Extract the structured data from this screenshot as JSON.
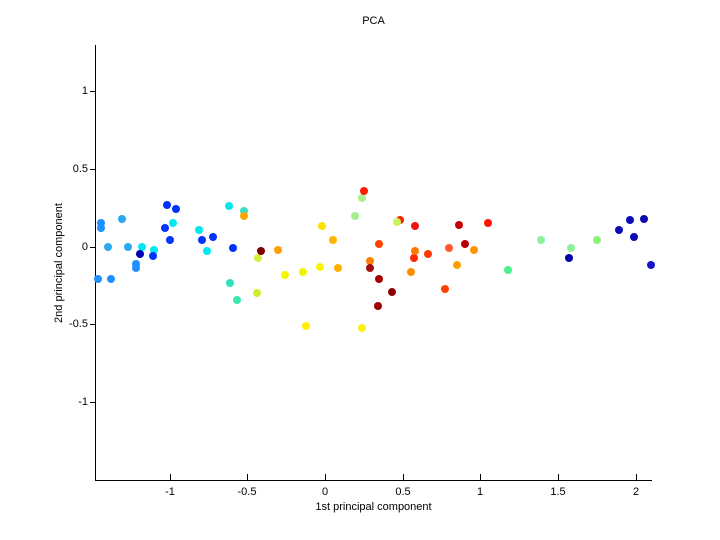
{
  "chart_data": {
    "type": "scatter",
    "title": "PCA",
    "xlabel": "1st principal component",
    "ylabel": "2nd principal component",
    "xlim": [
      -1.481,
      2.105
    ],
    "ylim": [
      -1.506,
      1.296
    ],
    "grid": false,
    "legend": null,
    "marker": "filled-circle",
    "colormap": "jet",
    "x_ticks": {
      "values": [
        -1,
        -0.5,
        0,
        0.5,
        1,
        1.5,
        2
      ],
      "labels": [
        "-1",
        "-0.5",
        "0",
        "0.5",
        "1",
        "1.5",
        "2"
      ]
    },
    "y_ticks": {
      "values": [
        -1,
        -0.5,
        0,
        0.5,
        1
      ],
      "labels": [
        "-1",
        "-0.5",
        "0",
        "0.5",
        "1"
      ]
    },
    "points": [
      {
        "x": -1.44,
        "y": 0.15,
        "color": "#1E90FF"
      },
      {
        "x": -1.44,
        "y": 0.12,
        "color": "#1E90FF"
      },
      {
        "x": -1.31,
        "y": 0.18,
        "color": "#2AA8F0"
      },
      {
        "x": -1.4,
        "y": 0.0,
        "color": "#2AA8F0"
      },
      {
        "x": -1.27,
        "y": 0.0,
        "color": "#2AA8F0"
      },
      {
        "x": -1.18,
        "y": 0.0,
        "color": "#00E8F0"
      },
      {
        "x": -1.1,
        "y": -0.02,
        "color": "#00E8F0"
      },
      {
        "x": -1.19,
        "y": -0.05,
        "color": "#0000B4"
      },
      {
        "x": -1.11,
        "y": -0.06,
        "color": "#0033FF"
      },
      {
        "x": -1.22,
        "y": -0.11,
        "color": "#1E90FF"
      },
      {
        "x": -1.22,
        "y": -0.14,
        "color": "#1E90FF"
      },
      {
        "x": -1.46,
        "y": -0.21,
        "color": "#1E90FF"
      },
      {
        "x": -1.38,
        "y": -0.21,
        "color": "#1E90FF"
      },
      {
        "x": -1.02,
        "y": 0.27,
        "color": "#0032FF"
      },
      {
        "x": -0.96,
        "y": 0.24,
        "color": "#0032FF"
      },
      {
        "x": -1.03,
        "y": 0.12,
        "color": "#0032FF"
      },
      {
        "x": -0.98,
        "y": 0.15,
        "color": "#00E8F0"
      },
      {
        "x": -1.0,
        "y": 0.04,
        "color": "#0032FF"
      },
      {
        "x": -0.81,
        "y": 0.11,
        "color": "#00E8F0"
      },
      {
        "x": -0.79,
        "y": 0.04,
        "color": "#0032FF"
      },
      {
        "x": -0.72,
        "y": 0.06,
        "color": "#0032FF"
      },
      {
        "x": -0.76,
        "y": -0.03,
        "color": "#00E8F0"
      },
      {
        "x": -0.62,
        "y": 0.26,
        "color": "#00E8F0"
      },
      {
        "x": -0.59,
        "y": -0.01,
        "color": "#0032FF"
      },
      {
        "x": -0.61,
        "y": -0.23,
        "color": "#30E0C0"
      },
      {
        "x": -0.57,
        "y": -0.34,
        "color": "#38E8B0"
      },
      {
        "x": -0.52,
        "y": 0.23,
        "color": "#30E0C8"
      },
      {
        "x": -0.52,
        "y": 0.2,
        "color": "#FFA500"
      },
      {
        "x": -0.02,
        "y": 0.13,
        "color": "#FFE100"
      },
      {
        "x": 0.05,
        "y": 0.04,
        "color": "#FFB400"
      },
      {
        "x": -0.43,
        "y": -0.07,
        "color": "#D2F03C"
      },
      {
        "x": -0.41,
        "y": -0.03,
        "color": "#7D0000"
      },
      {
        "x": -0.3,
        "y": -0.02,
        "color": "#FFA000"
      },
      {
        "x": -0.26,
        "y": -0.18,
        "color": "#F5F500"
      },
      {
        "x": -0.14,
        "y": -0.16,
        "color": "#EEF500"
      },
      {
        "x": -0.03,
        "y": -0.13,
        "color": "#F7F500"
      },
      {
        "x": 0.08,
        "y": -0.14,
        "color": "#FFB000"
      },
      {
        "x": 0.29,
        "y": -0.09,
        "color": "#FF8000"
      },
      {
        "x": 0.29,
        "y": -0.14,
        "color": "#A01010"
      },
      {
        "x": -0.44,
        "y": -0.3,
        "color": "#CCF030"
      },
      {
        "x": -0.12,
        "y": -0.51,
        "color": "#FFF000"
      },
      {
        "x": 0.24,
        "y": -0.52,
        "color": "#FFF000"
      },
      {
        "x": 0.24,
        "y": 0.31,
        "color": "#AAF28C"
      },
      {
        "x": 0.25,
        "y": 0.36,
        "color": "#FF1E00"
      },
      {
        "x": 0.19,
        "y": 0.2,
        "color": "#A5EE8C"
      },
      {
        "x": 0.48,
        "y": 0.17,
        "color": "#FF2000"
      },
      {
        "x": 0.46,
        "y": 0.16,
        "color": "#C8F55F"
      },
      {
        "x": 0.58,
        "y": 0.13,
        "color": "#F01414"
      },
      {
        "x": 0.86,
        "y": 0.14,
        "color": "#C80000"
      },
      {
        "x": 1.05,
        "y": 0.15,
        "color": "#FF1400"
      },
      {
        "x": 0.35,
        "y": 0.02,
        "color": "#FF4500"
      },
      {
        "x": 0.8,
        "y": -0.01,
        "color": "#FF5A28"
      },
      {
        "x": 0.9,
        "y": 0.02,
        "color": "#B40000"
      },
      {
        "x": 0.96,
        "y": -0.02,
        "color": "#FF9600"
      },
      {
        "x": 0.57,
        "y": -0.07,
        "color": "#FF2800"
      },
      {
        "x": 0.58,
        "y": -0.03,
        "color": "#FF7800"
      },
      {
        "x": 0.66,
        "y": -0.05,
        "color": "#FF3700"
      },
      {
        "x": 0.55,
        "y": -0.16,
        "color": "#FF8C00"
      },
      {
        "x": 0.85,
        "y": -0.12,
        "color": "#FFA000"
      },
      {
        "x": 0.35,
        "y": -0.21,
        "color": "#A50000"
      },
      {
        "x": 0.43,
        "y": -0.29,
        "color": "#8B0000"
      },
      {
        "x": 0.77,
        "y": -0.27,
        "color": "#FF4000"
      },
      {
        "x": 0.34,
        "y": -0.38,
        "color": "#A00000"
      },
      {
        "x": 1.18,
        "y": -0.15,
        "color": "#50F08C"
      },
      {
        "x": 1.39,
        "y": 0.04,
        "color": "#8CF0A0"
      },
      {
        "x": 1.58,
        "y": -0.01,
        "color": "#8CF09A"
      },
      {
        "x": 1.57,
        "y": -0.07,
        "color": "#0000A0"
      },
      {
        "x": 1.75,
        "y": 0.04,
        "color": "#90F080"
      },
      {
        "x": 1.89,
        "y": 0.11,
        "color": "#0A0AB4"
      },
      {
        "x": 1.96,
        "y": 0.17,
        "color": "#0A0AB4"
      },
      {
        "x": 2.05,
        "y": 0.18,
        "color": "#0A0AB4"
      },
      {
        "x": 1.99,
        "y": 0.06,
        "color": "#0A0AB4"
      },
      {
        "x": 2.1,
        "y": -0.12,
        "color": "#1414C8"
      }
    ]
  }
}
